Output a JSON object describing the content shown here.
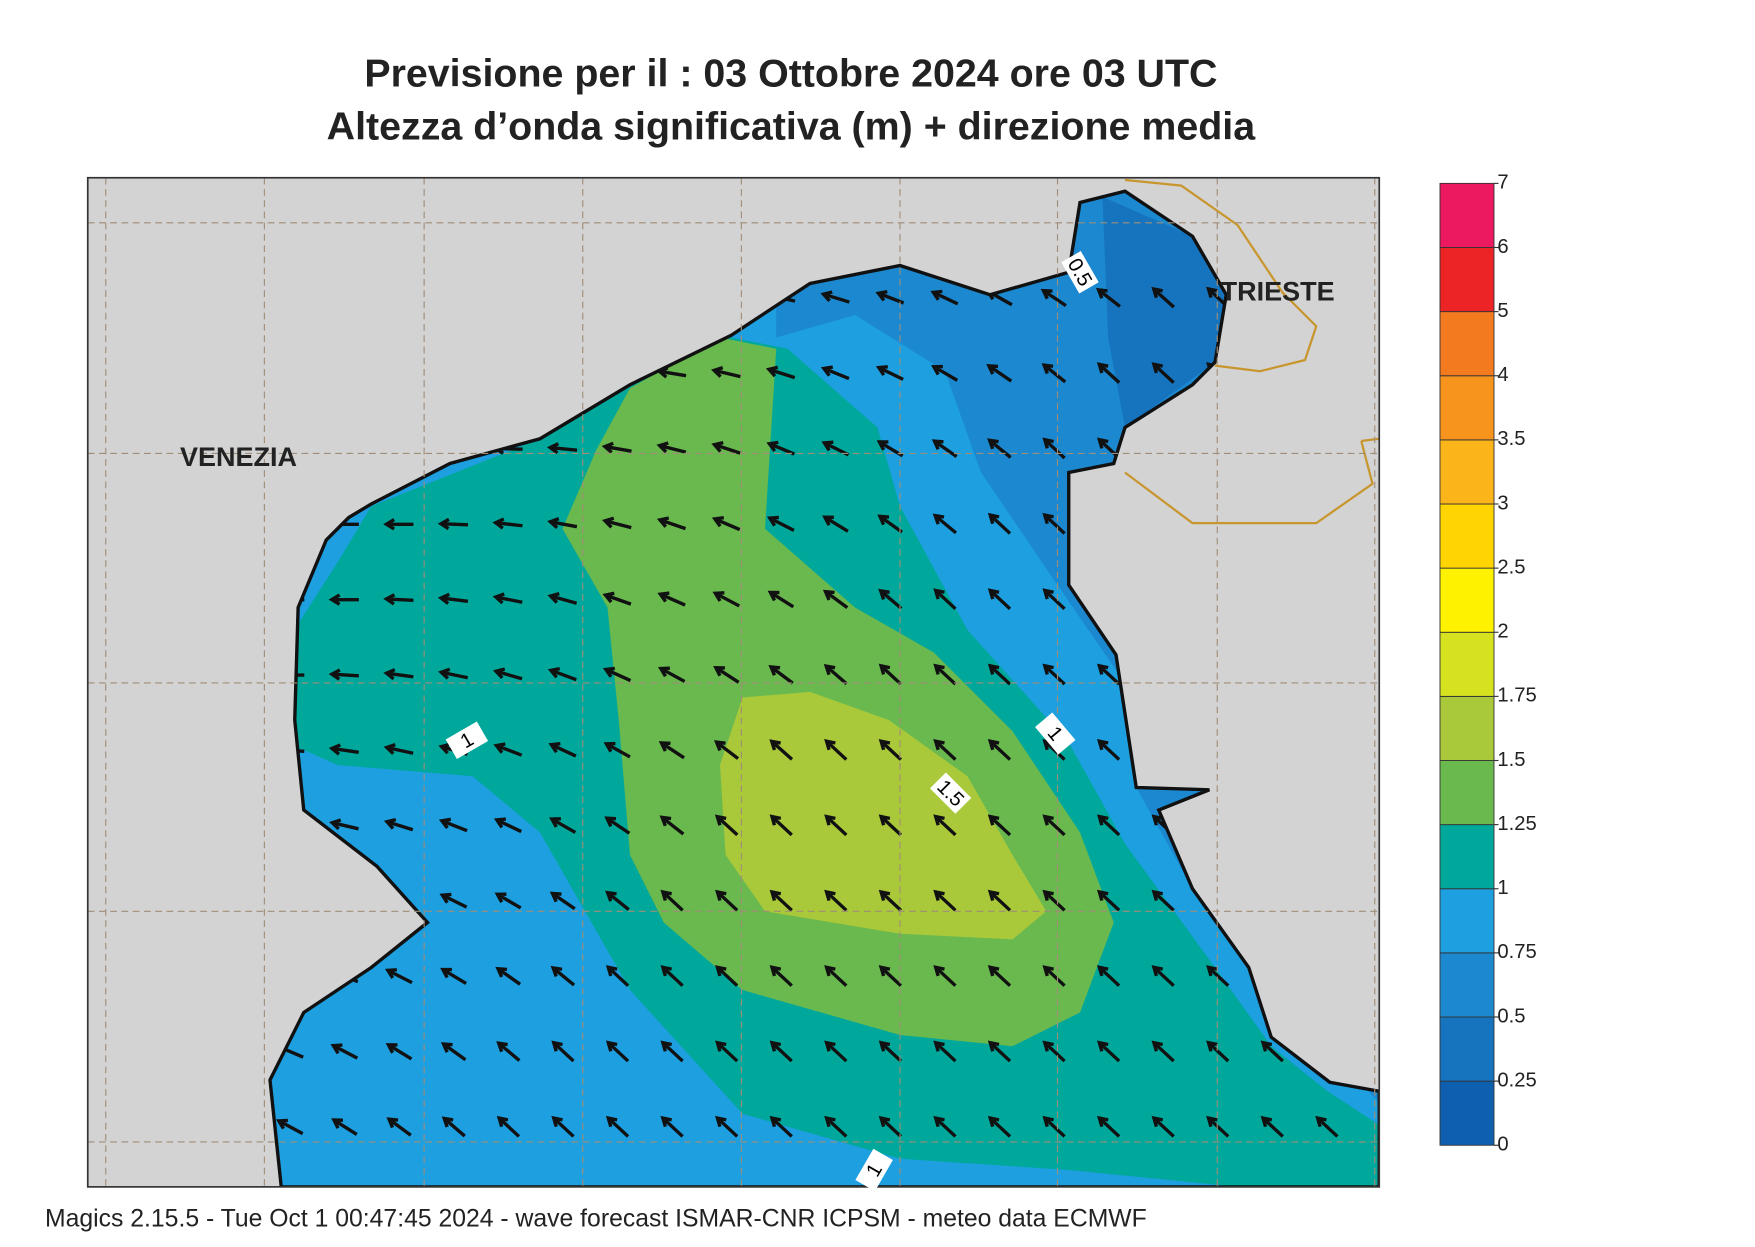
{
  "title": "Previsione per il  :  03  Ottobre  2024   ore 03 UTC",
  "subtitle": "Altezza d’onda significativa (m) + direzione media",
  "places": [
    "VENEZIA",
    "TRIESTE"
  ],
  "contour_labels": [
    0.5,
    1,
    1,
    1.5,
    1
  ],
  "colorbar": {
    "levels": [
      0,
      0.25,
      0.5,
      0.75,
      1,
      1.25,
      1.5,
      1.75,
      2,
      2.5,
      3,
      3.5,
      4,
      5,
      6,
      7
    ],
    "colors": [
      "#0f5fb0",
      "#1674bf",
      "#1b88cf",
      "#1d9fe0",
      "#00a89c",
      "#6ab94f",
      "#a9c93a",
      "#d6e120",
      "#fff200",
      "#ffd400",
      "#fbb41a",
      "#f7941d",
      "#f47a20",
      "#ed2426",
      "#ec1860"
    ]
  },
  "footer": "Magics 2.15.5 - Tue Oct  1 00:47:45 2024 - wave forecast  ISMAR-CNR  ICPSM - meteo data    ECMWF"
}
